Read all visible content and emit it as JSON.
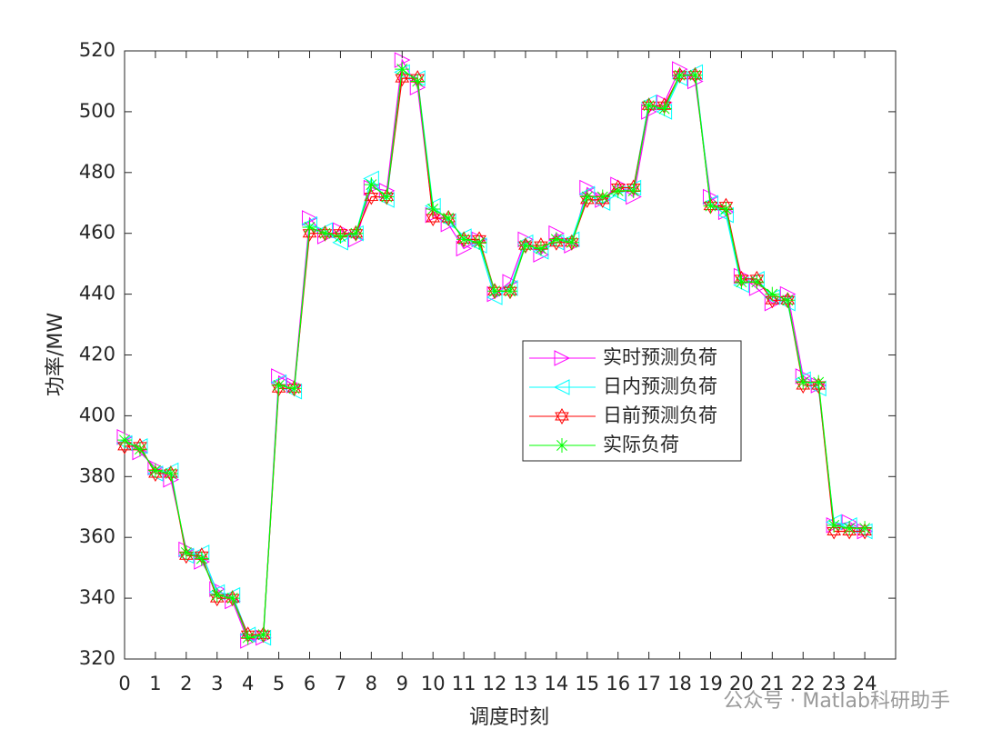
{
  "chart_data": {
    "type": "line",
    "xlabel": "调度时刻",
    "ylabel": "功率/MW",
    "watermark": "公众号 · Matlab科研助手",
    "x": [
      0,
      0.5,
      1,
      1.5,
      2,
      2.5,
      3,
      3.5,
      4,
      4.5,
      5,
      5.5,
      6,
      6.5,
      7,
      7.5,
      8,
      8.5,
      9,
      9.5,
      10,
      10.5,
      11,
      11.5,
      12,
      12.5,
      13,
      13.5,
      14,
      14.5,
      15,
      15.5,
      16,
      16.5,
      17,
      17.5,
      18,
      18.5,
      19,
      19.5,
      20,
      20.5,
      21,
      21.5,
      22,
      22.5,
      23,
      23.5,
      24
    ],
    "series": [
      {
        "name": "实时预测负荷",
        "color": "#ff00ff",
        "marker": "triangle-right",
        "values": [
          393,
          388,
          383,
          379,
          356,
          352,
          343,
          339,
          326,
          327,
          413,
          410,
          465,
          459,
          461,
          458,
          475,
          474,
          517,
          508,
          466,
          463,
          455,
          458,
          440,
          444,
          458,
          453,
          460,
          456,
          475,
          471,
          476,
          472,
          500,
          503,
          514,
          510,
          472,
          467,
          446,
          442,
          437,
          440,
          413,
          410,
          364,
          365,
          362
        ]
      },
      {
        "name": "日内预测负荷",
        "color": "#00ffff",
        "marker": "triangle-left",
        "values": [
          391,
          390,
          381,
          382,
          354,
          355,
          342,
          341,
          328,
          327,
          411,
          408,
          463,
          461,
          457,
          460,
          478,
          471,
          513,
          511,
          469,
          464,
          459,
          456,
          439,
          442,
          457,
          454,
          457,
          458,
          473,
          470,
          473,
          475,
          503,
          500,
          511,
          513,
          470,
          466,
          443,
          445,
          439,
          437,
          412,
          409,
          365,
          364,
          362
        ]
      },
      {
        "name": "日前预测负荷",
        "color": "#ff0000",
        "marker": "hexagram",
        "values": [
          390,
          390,
          381,
          381,
          354,
          354,
          340,
          340,
          328,
          328,
          409,
          409,
          460,
          460,
          460,
          460,
          472,
          472,
          511,
          511,
          465,
          465,
          458,
          458,
          441,
          441,
          456,
          456,
          457,
          457,
          471,
          471,
          475,
          475,
          502,
          502,
          512,
          512,
          469,
          469,
          445,
          445,
          438,
          438,
          410,
          410,
          362,
          362,
          362
        ]
      },
      {
        "name": "实际负荷",
        "color": "#00ff00",
        "marker": "asterisk",
        "values": [
          392,
          389,
          382,
          381,
          355,
          353,
          341,
          340,
          327,
          328,
          410,
          409,
          462,
          460,
          459,
          460,
          476,
          472,
          514,
          510,
          468,
          465,
          458,
          457,
          441,
          441,
          456,
          455,
          458,
          457,
          472,
          472,
          474,
          474,
          502,
          501,
          512,
          512,
          469,
          468,
          444,
          444,
          440,
          438,
          411,
          411,
          364,
          363,
          363
        ]
      }
    ],
    "xlim": [
      0,
      25
    ],
    "xticks": [
      0,
      1,
      2,
      3,
      4,
      5,
      6,
      7,
      8,
      9,
      10,
      11,
      12,
      13,
      14,
      15,
      16,
      17,
      18,
      19,
      20,
      21,
      22,
      23,
      24
    ],
    "ylim": [
      320,
      520
    ],
    "yticks": [
      320,
      340,
      360,
      380,
      400,
      420,
      440,
      460,
      480,
      500,
      520
    ],
    "grid": false
  }
}
